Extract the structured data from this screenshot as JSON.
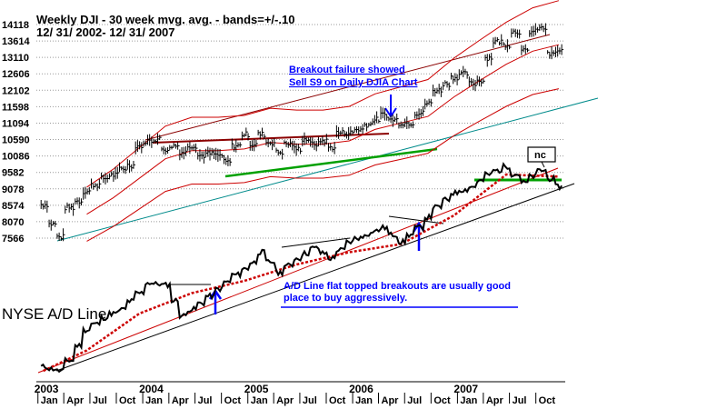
{
  "chart_data": {
    "type": "line",
    "title": "Weekly DJI - 30 week mvg. avg. - bands=+/-.10",
    "subtitle": "12/ 31/ 2002- 12/ 31/ 2007",
    "y_ticks": [
      14118,
      13614,
      13110,
      12606,
      12102,
      11598,
      11094,
      10590,
      10086,
      9582,
      9078,
      8574,
      8070,
      7566
    ],
    "ylim": [
      7400,
      14700
    ],
    "x_range": [
      "2002-12-31",
      "2007-12-31"
    ],
    "year_labels": [
      "2003",
      "2004",
      "2005",
      "2006",
      "2007"
    ],
    "month_labels": [
      "Jan",
      "Apr",
      "Jul",
      "Oct",
      "Jan",
      "Apr",
      "Jul",
      "Oct",
      "Jan",
      "Apr",
      "Jul",
      "Oct",
      "Jan",
      "Apr",
      "Jul",
      "Oct",
      "Jan",
      "Apr",
      "Jul",
      "Oct"
    ],
    "series": [
      {
        "name": "DJI weekly",
        "color": "#000000",
        "points": [
          [
            "2003-01",
            8600
          ],
          [
            "2003-02",
            8000
          ],
          [
            "2003-03",
            7600
          ],
          [
            "2003-04",
            8500
          ],
          [
            "2003-05",
            8700
          ],
          [
            "2003-06",
            9000
          ],
          [
            "2003-07",
            9200
          ],
          [
            "2003-08",
            9400
          ],
          [
            "2003-09",
            9500
          ],
          [
            "2003-10",
            9700
          ],
          [
            "2003-11",
            9800
          ],
          [
            "2003-12",
            10400
          ],
          [
            "2004-01",
            10550
          ],
          [
            "2004-02",
            10600
          ],
          [
            "2004-03",
            10300
          ],
          [
            "2004-04",
            10400
          ],
          [
            "2004-05",
            10200
          ],
          [
            "2004-06",
            10400
          ],
          [
            "2004-07",
            10100
          ],
          [
            "2004-08",
            10150
          ],
          [
            "2004-09",
            10100
          ],
          [
            "2004-10",
            9900
          ],
          [
            "2004-11",
            10400
          ],
          [
            "2004-12",
            10750
          ],
          [
            "2005-01",
            10450
          ],
          [
            "2005-02",
            10750
          ],
          [
            "2005-03",
            10500
          ],
          [
            "2005-04",
            10200
          ],
          [
            "2005-05",
            10450
          ],
          [
            "2005-06",
            10300
          ],
          [
            "2005-07",
            10600
          ],
          [
            "2005-08",
            10450
          ],
          [
            "2005-09",
            10550
          ],
          [
            "2005-10",
            10350
          ],
          [
            "2005-11",
            10800
          ],
          [
            "2005-12",
            10800
          ],
          [
            "2006-01",
            10900
          ],
          [
            "2006-02",
            11050
          ],
          [
            "2006-03",
            11200
          ],
          [
            "2006-04",
            11350
          ],
          [
            "2006-05",
            11200
          ],
          [
            "2006-06",
            11100
          ],
          [
            "2006-07",
            11100
          ],
          [
            "2006-08",
            11400
          ],
          [
            "2006-09",
            11700
          ],
          [
            "2006-10",
            12100
          ],
          [
            "2006-11",
            12300
          ],
          [
            "2006-12",
            12500
          ],
          [
            "2007-01",
            12600
          ],
          [
            "2007-02",
            12300
          ],
          [
            "2007-03",
            12400
          ],
          [
            "2007-04",
            13100
          ],
          [
            "2007-05",
            13600
          ],
          [
            "2007-06",
            13500
          ],
          [
            "2007-07",
            13900
          ],
          [
            "2007-08",
            13300
          ],
          [
            "2007-09",
            13900
          ],
          [
            "2007-10",
            14000
          ],
          [
            "2007-11",
            13200
          ],
          [
            "2007-12",
            13300
          ]
        ]
      },
      {
        "name": "30-week moving average",
        "color": "#cc0000",
        "points": [
          [
            "2003-06",
            8300
          ],
          [
            "2003-09",
            8800
          ],
          [
            "2003-12",
            9400
          ],
          [
            "2004-03",
            10000
          ],
          [
            "2004-06",
            10250
          ],
          [
            "2004-09",
            10250
          ],
          [
            "2004-12",
            10300
          ],
          [
            "2005-03",
            10500
          ],
          [
            "2005-06",
            10450
          ],
          [
            "2005-09",
            10450
          ],
          [
            "2005-12",
            10550
          ],
          [
            "2006-03",
            10900
          ],
          [
            "2006-06",
            11100
          ],
          [
            "2006-09",
            11300
          ],
          [
            "2006-12",
            11900
          ],
          [
            "2007-03",
            12400
          ],
          [
            "2007-06",
            12900
          ],
          [
            "2007-09",
            13300
          ],
          [
            "2007-12",
            13500
          ]
        ]
      },
      {
        "name": "NYSE A/D Line",
        "color": "#000000",
        "points": [
          [
            "2003-01",
            0.02
          ],
          [
            "2003-03",
            0.0
          ],
          [
            "2003-04",
            0.05
          ],
          [
            "2003-06",
            0.2
          ],
          [
            "2003-08",
            0.26
          ],
          [
            "2003-10",
            0.3
          ],
          [
            "2003-12",
            0.38
          ],
          [
            "2004-01",
            0.43
          ],
          [
            "2004-03",
            0.42
          ],
          [
            "2004-05",
            0.27
          ],
          [
            "2004-07",
            0.33
          ],
          [
            "2004-09",
            0.4
          ],
          [
            "2004-11",
            0.47
          ],
          [
            "2005-01",
            0.53
          ],
          [
            "2005-02",
            0.58
          ],
          [
            "2005-04",
            0.48
          ],
          [
            "2005-06",
            0.55
          ],
          [
            "2005-08",
            0.6
          ],
          [
            "2005-10",
            0.55
          ],
          [
            "2005-12",
            0.63
          ],
          [
            "2006-02",
            0.67
          ],
          [
            "2006-04",
            0.7
          ],
          [
            "2006-06",
            0.63
          ],
          [
            "2006-08",
            0.7
          ],
          [
            "2006-10",
            0.8
          ],
          [
            "2006-12",
            0.87
          ],
          [
            "2007-02",
            0.9
          ],
          [
            "2007-04",
            0.96
          ],
          [
            "2007-06",
            1.0
          ],
          [
            "2007-08",
            0.92
          ],
          [
            "2007-10",
            0.98
          ],
          [
            "2007-12",
            0.9
          ]
        ]
      },
      {
        "name": "A/D Line moving average",
        "color": "#cc0000",
        "points": [
          [
            "2003-01",
            0.0
          ],
          [
            "2003-06",
            0.1
          ],
          [
            "2003-12",
            0.28
          ],
          [
            "2004-06",
            0.38
          ],
          [
            "2004-12",
            0.44
          ],
          [
            "2005-06",
            0.52
          ],
          [
            "2005-12",
            0.58
          ],
          [
            "2006-06",
            0.62
          ],
          [
            "2006-12",
            0.76
          ],
          [
            "2007-06",
            0.96
          ],
          [
            "2007-12",
            0.95
          ]
        ]
      }
    ],
    "annotations": [
      "Breakout failure showed",
      "Sell S9 on Daily DJIA Chart",
      "A/D Line flat topped breakouts are usually good",
      "place to buy aggressively."
    ],
    "legend_labels": [
      "NYSE A/D Line",
      "nc"
    ],
    "grid": true
  }
}
